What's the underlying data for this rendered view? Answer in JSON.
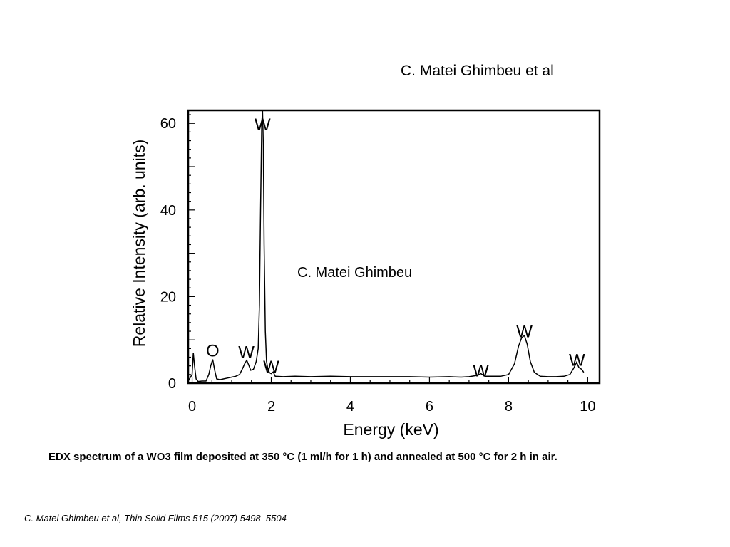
{
  "header": {
    "author_top": "C. Matei Ghimbeu et al"
  },
  "watermark": {
    "author_mid": "C. Matei Ghimbeu"
  },
  "caption": "EDX spectrum of a WO3 film deposited at 350 °C (1 ml/h for 1 h) and annealed at 500 °C for 2 h in air.",
  "citation": "C. Matei Ghimbeu et al,  Thin Solid Films 515 (2007) 5498–5504",
  "chart_data": {
    "type": "line",
    "title": "",
    "xlabel": "Energy (keV)",
    "ylabel": "Relative Intensity (arb. units)",
    "xlim": [
      -0.1,
      10.3
    ],
    "ylim": [
      0,
      63
    ],
    "xticks": [
      0,
      2,
      4,
      6,
      8,
      10
    ],
    "yticks": [
      0,
      20,
      40,
      60
    ],
    "grid": false,
    "line_color": "#000000",
    "series": [
      {
        "name": "",
        "x": [
          -0.1,
          0.0,
          0.03,
          0.06,
          0.1,
          0.15,
          0.25,
          0.35,
          0.42,
          0.47,
          0.52,
          0.57,
          0.62,
          0.7,
          0.8,
          0.9,
          1.0,
          1.1,
          1.2,
          1.28,
          1.33,
          1.38,
          1.43,
          1.48,
          1.55,
          1.62,
          1.67,
          1.7,
          1.73,
          1.76,
          1.78,
          1.8,
          1.82,
          1.85,
          1.88,
          1.92,
          1.96,
          2.0,
          2.05,
          2.1,
          2.3,
          2.6,
          3.0,
          3.5,
          4.0,
          4.5,
          5.0,
          5.5,
          6.0,
          6.5,
          6.8,
          7.0,
          7.2,
          7.3,
          7.4,
          7.6,
          7.8,
          8.0,
          8.15,
          8.25,
          8.33,
          8.4,
          8.47,
          8.55,
          8.65,
          8.8,
          9.0,
          9.2,
          9.4,
          9.55,
          9.65,
          9.72,
          9.78,
          9.85,
          9.9
        ],
        "y": [
          0.5,
          2,
          7,
          4,
          1,
          0.4,
          0.5,
          0.5,
          2,
          4,
          5.5,
          3,
          1,
          0.8,
          1,
          1.2,
          1.4,
          1.6,
          2,
          3.5,
          4.5,
          5.3,
          4.2,
          3,
          3.2,
          5,
          8,
          18,
          40,
          60,
          64,
          55,
          32,
          12,
          5,
          3,
          2.4,
          2.2,
          2.6,
          1.6,
          1.5,
          1.6,
          1.5,
          1.6,
          1.5,
          1.5,
          1.5,
          1.5,
          1.4,
          1.5,
          1.4,
          1.5,
          1.8,
          2.2,
          1.6,
          1.6,
          1.6,
          2,
          4.5,
          8.5,
          10.5,
          11,
          9,
          5,
          2.5,
          1.6,
          1.5,
          1.5,
          1.6,
          2,
          3.5,
          4.8,
          3.6,
          3.2,
          2.5
        ]
      }
    ],
    "annotations": [
      {
        "text": "O",
        "x": 0.52,
        "y": 6.2
      },
      {
        "text": "W",
        "x": 1.37,
        "y": 5.8
      },
      {
        "text": "W",
        "x": 1.78,
        "y": 58.4
      },
      {
        "text": "W",
        "x": 2.0,
        "y": 2.5
      },
      {
        "text": "W",
        "x": 7.3,
        "y": 1.6
      },
      {
        "text": "W",
        "x": 8.4,
        "y": 10.6
      },
      {
        "text": "W",
        "x": 9.73,
        "y": 4.0
      }
    ]
  }
}
